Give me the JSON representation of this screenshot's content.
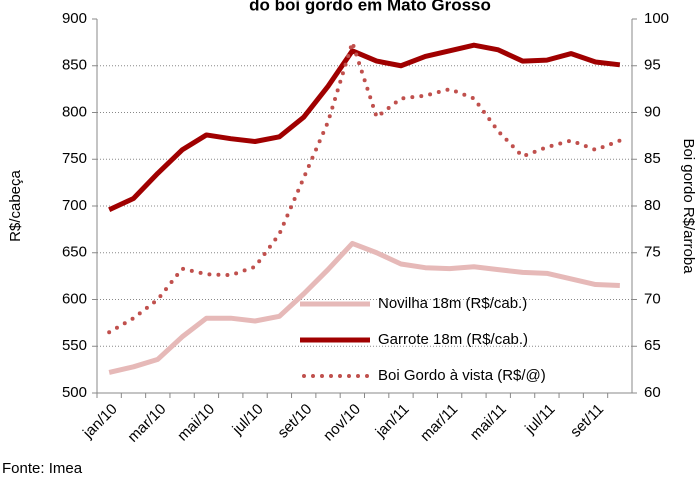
{
  "chart_data": {
    "type": "line",
    "title": "do boi gordo em Mato Grosso",
    "y_label": "R$/cabeça",
    "y2_label": "Boi gordo R$/arroba",
    "source": "Fonte: Imea",
    "categories": [
      "jan/10",
      null,
      "mar/10",
      null,
      "mai/10",
      null,
      "jul/10",
      null,
      "set/10",
      null,
      "nov/10",
      null,
      "jan/11",
      null,
      "mar/11",
      null,
      "mai/11",
      null,
      "jul/11",
      null,
      "set/11",
      null
    ],
    "ylim": [
      500,
      900
    ],
    "yticks": [
      500,
      550,
      600,
      650,
      700,
      750,
      800,
      850,
      900
    ],
    "y2lim": [
      60,
      100
    ],
    "y2ticks": [
      60,
      65,
      70,
      75,
      80,
      85,
      90,
      95,
      100
    ],
    "grid": true,
    "series": [
      {
        "name": "Novilha 18m (R$/cab.)",
        "color": "#e6b9b8",
        "style": "solid",
        "values": [
          522,
          528,
          536,
          560,
          580,
          580,
          577,
          582,
          606,
          632,
          660,
          650,
          638,
          634,
          633,
          635,
          632,
          629,
          628,
          622,
          616,
          615
        ]
      },
      {
        "name": "Garrote 18m (R$/cab.)",
        "color": "#a00000",
        "style": "solid",
        "values": [
          696,
          708,
          735,
          760,
          776,
          772,
          769,
          774,
          795,
          828,
          866,
          855,
          850,
          860,
          866,
          872,
          867,
          855,
          856,
          863,
          854,
          851
        ]
      },
      {
        "name": "Boi Gordo à vista (R$/@)",
        "color": "#c0504d",
        "style": "dotted",
        "axis": "y2",
        "values": [
          66.5,
          68,
          70,
          73.3,
          72.7,
          72.6,
          73.5,
          77,
          83,
          89,
          97.5,
          89.5,
          91.5,
          91.8,
          92.5,
          91.5,
          88,
          85.3,
          86.3,
          87,
          86,
          87
        ]
      }
    ]
  }
}
